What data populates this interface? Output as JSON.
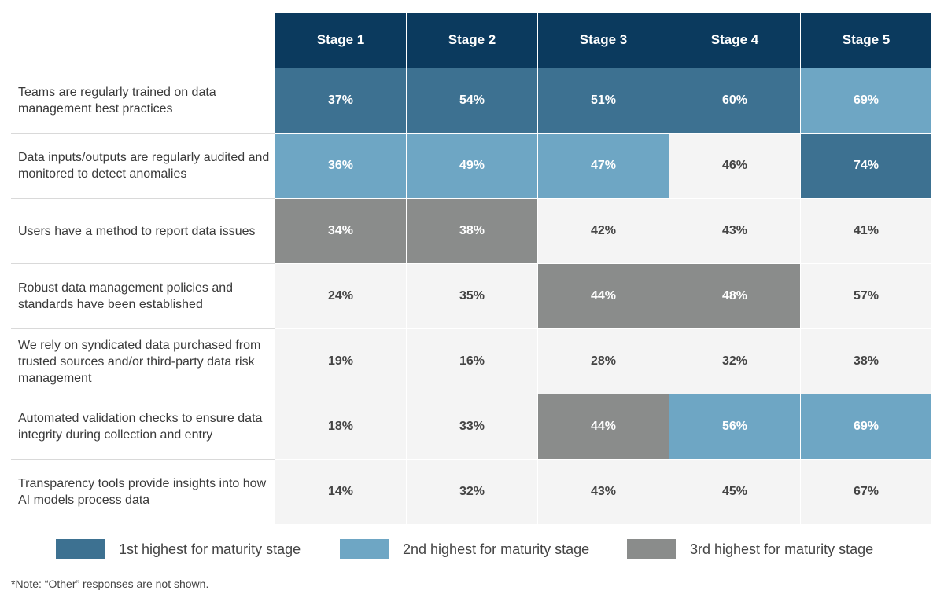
{
  "chart_data": {
    "type": "heatmap",
    "columns": [
      "Stage 1",
      "Stage 2",
      "Stage 3",
      "Stage 4",
      "Stage 5"
    ],
    "rows": [
      {
        "label": "Teams are regularly trained on data management best practices",
        "values": [
          37,
          54,
          51,
          60,
          69
        ],
        "ranks": [
          1,
          1,
          1,
          1,
          2
        ]
      },
      {
        "label": "Data inputs/outputs are regularly audited and monitored to detect anomalies",
        "values": [
          36,
          49,
          47,
          46,
          74
        ],
        "ranks": [
          2,
          2,
          2,
          0,
          1
        ]
      },
      {
        "label": "Users have a method to report data issues",
        "values": [
          34,
          38,
          42,
          43,
          41
        ],
        "ranks": [
          3,
          3,
          0,
          0,
          0
        ]
      },
      {
        "label": "Robust data management policies and standards have been established",
        "values": [
          24,
          35,
          44,
          48,
          57
        ],
        "ranks": [
          0,
          0,
          3,
          3,
          0
        ]
      },
      {
        "label": "We rely on syndicated data purchased from trusted sources and/or third-party data risk management",
        "values": [
          19,
          16,
          28,
          32,
          38
        ],
        "ranks": [
          0,
          0,
          0,
          0,
          0
        ]
      },
      {
        "label": "Automated validation checks to ensure data integrity during collection and entry",
        "values": [
          18,
          33,
          44,
          56,
          69
        ],
        "ranks": [
          0,
          0,
          3,
          2,
          2
        ]
      },
      {
        "label": "Transparency tools provide insights into how AI models process data",
        "values": [
          14,
          32,
          43,
          45,
          67
        ],
        "ranks": [
          0,
          0,
          0,
          0,
          0
        ]
      }
    ],
    "value_suffix": "%",
    "legend": [
      {
        "label": "1st highest for maturity stage",
        "color": "#3d7191"
      },
      {
        "label": "2nd highest for maturity stage",
        "color": "#6ea6c4"
      },
      {
        "label": "3rd highest for maturity stage",
        "color": "#8a8c8b"
      }
    ],
    "default_cell_color": "#f4f4f4"
  },
  "note": "*Note: “Other” responses are not shown."
}
